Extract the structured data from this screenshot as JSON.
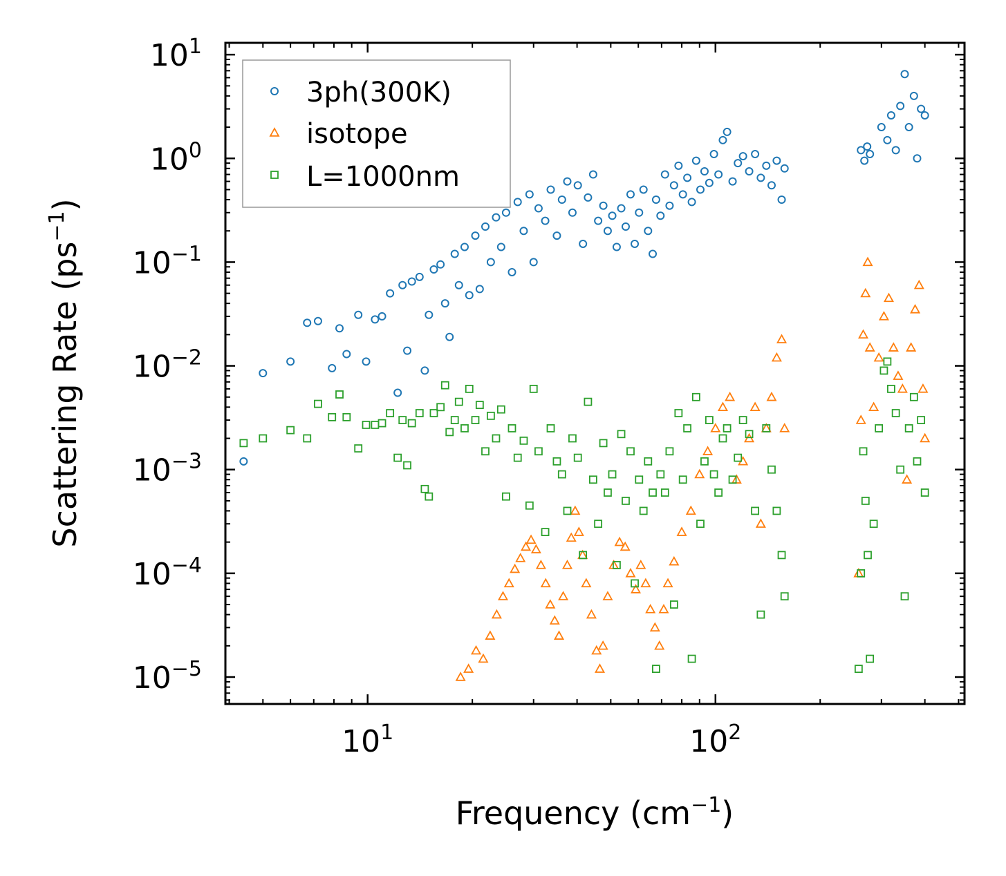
{
  "chart_data": {
    "type": "scatter",
    "xscale": "log",
    "yscale": "log",
    "xlim": [
      3.9,
      520
    ],
    "ylim": [
      5.5e-06,
      13
    ],
    "xlabel": "Frequency (cm",
    "xlabel_exp": "−1",
    "xlabel_end": ")",
    "ylabel": "Scattering Rate (ps",
    "ylabel_exp": "−1",
    "ylabel_end": ")",
    "x_ticks": [
      {
        "value": 10,
        "base": "10",
        "exp": "1"
      },
      {
        "value": 100,
        "base": "10",
        "exp": "2"
      }
    ],
    "y_ticks": [
      {
        "value": 10,
        "base": "10",
        "exp": "1"
      },
      {
        "value": 1,
        "base": "10",
        "exp": "0"
      },
      {
        "value": 0.1,
        "base": "10",
        "exp": "−1"
      },
      {
        "value": 0.01,
        "base": "10",
        "exp": "−2"
      },
      {
        "value": 0.001,
        "base": "10",
        "exp": "−3"
      },
      {
        "value": 0.0001,
        "base": "10",
        "exp": "−4"
      },
      {
        "value": 1e-05,
        "base": "10",
        "exp": "−5"
      }
    ],
    "legend_position": "top-left",
    "series": [
      {
        "name": "3ph(300K)",
        "marker": "circle",
        "color": "#1f77b4",
        "points": [
          [
            4.4,
            0.0012
          ],
          [
            5.0,
            0.0085
          ],
          [
            6.0,
            0.011
          ],
          [
            6.7,
            0.026
          ],
          [
            7.2,
            0.027
          ],
          [
            7.9,
            0.0095
          ],
          [
            8.3,
            0.023
          ],
          [
            8.7,
            0.013
          ],
          [
            9.4,
            0.031
          ],
          [
            9.9,
            0.011
          ],
          [
            10.5,
            0.028
          ],
          [
            11.0,
            0.03
          ],
          [
            11.6,
            0.05
          ],
          [
            12.2,
            0.0055
          ],
          [
            12.6,
            0.06
          ],
          [
            13.0,
            0.014
          ],
          [
            13.4,
            0.065
          ],
          [
            14.1,
            0.072
          ],
          [
            14.6,
            0.009
          ],
          [
            15.0,
            0.031
          ],
          [
            15.5,
            0.085
          ],
          [
            16.2,
            0.095
          ],
          [
            16.7,
            0.04
          ],
          [
            17.2,
            0.019
          ],
          [
            17.8,
            0.12
          ],
          [
            18.3,
            0.06
          ],
          [
            19.0,
            0.14
          ],
          [
            19.6,
            0.048
          ],
          [
            20.4,
            0.18
          ],
          [
            21.0,
            0.055
          ],
          [
            21.8,
            0.22
          ],
          [
            22.6,
            0.1
          ],
          [
            23.4,
            0.27
          ],
          [
            24.2,
            0.14
          ],
          [
            25.0,
            0.3
          ],
          [
            26.0,
            0.08
          ],
          [
            27.0,
            0.38
          ],
          [
            28.1,
            0.2
          ],
          [
            29.2,
            0.45
          ],
          [
            30.0,
            0.1
          ],
          [
            31.0,
            0.33
          ],
          [
            32.4,
            0.25
          ],
          [
            33.6,
            0.5
          ],
          [
            35.0,
            0.18
          ],
          [
            36.2,
            0.4
          ],
          [
            37.5,
            0.6
          ],
          [
            38.8,
            0.3
          ],
          [
            40.2,
            0.55
          ],
          [
            41.6,
            0.15
          ],
          [
            43.0,
            0.42
          ],
          [
            44.5,
            0.7
          ],
          [
            46.0,
            0.25
          ],
          [
            47.6,
            0.35
          ],
          [
            49.0,
            0.2
          ],
          [
            50.5,
            0.28
          ],
          [
            52.0,
            0.14
          ],
          [
            53.6,
            0.33
          ],
          [
            55.2,
            0.22
          ],
          [
            57.0,
            0.45
          ],
          [
            58.6,
            0.15
          ],
          [
            60.3,
            0.3
          ],
          [
            62.1,
            0.5
          ],
          [
            64.0,
            0.2
          ],
          [
            66.0,
            0.12
          ],
          [
            67.5,
            0.4
          ],
          [
            69.5,
            0.28
          ],
          [
            71.6,
            0.7
          ],
          [
            73.8,
            0.35
          ],
          [
            76.0,
            0.55
          ],
          [
            78.3,
            0.85
          ],
          [
            80.6,
            0.45
          ],
          [
            83.0,
            0.65
          ],
          [
            85.5,
            0.38
          ],
          [
            88.0,
            0.95
          ],
          [
            90.5,
            0.5
          ],
          [
            93.0,
            0.75
          ],
          [
            96.0,
            0.58
          ],
          [
            99.0,
            1.1
          ],
          [
            102.0,
            0.7
          ],
          [
            105.0,
            1.5
          ],
          [
            108.0,
            1.8
          ],
          [
            112.0,
            0.6
          ],
          [
            116.0,
            0.9
          ],
          [
            120.0,
            1.05
          ],
          [
            125.0,
            0.75
          ],
          [
            130.0,
            1.1
          ],
          [
            135.0,
            0.65
          ],
          [
            140.0,
            0.85
          ],
          [
            145.0,
            0.55
          ],
          [
            150.0,
            0.95
          ],
          [
            155.0,
            0.4
          ],
          [
            158.0,
            0.8
          ],
          [
            262.0,
            1.2
          ],
          [
            268.0,
            0.95
          ],
          [
            273.0,
            1.3
          ],
          [
            278.0,
            1.1
          ],
          [
            300.0,
            2.0
          ],
          [
            312.0,
            1.5
          ],
          [
            320.0,
            2.6
          ],
          [
            330.0,
            1.2
          ],
          [
            340.0,
            3.2
          ],
          [
            350.0,
            6.5
          ],
          [
            360.0,
            2.0
          ],
          [
            372.0,
            4.0
          ],
          [
            380.0,
            1.0
          ],
          [
            390.0,
            3.0
          ],
          [
            400.0,
            2.6
          ]
        ]
      },
      {
        "name": "isotope",
        "marker": "triangle",
        "color": "#ff7f0e",
        "points": [
          [
            18.5,
            1e-05
          ],
          [
            19.5,
            1.2e-05
          ],
          [
            20.5,
            1.8e-05
          ],
          [
            21.5,
            1.5e-05
          ],
          [
            22.5,
            2.5e-05
          ],
          [
            23.5,
            4e-05
          ],
          [
            24.5,
            6e-05
          ],
          [
            25.5,
            8e-05
          ],
          [
            26.5,
            0.00011
          ],
          [
            27.5,
            0.00014
          ],
          [
            28.5,
            0.00018
          ],
          [
            29.5,
            0.00021
          ],
          [
            30.5,
            0.00017
          ],
          [
            31.5,
            0.00012
          ],
          [
            32.5,
            8e-05
          ],
          [
            33.5,
            5e-05
          ],
          [
            34.5,
            3.5e-05
          ],
          [
            35.5,
            2.5e-05
          ],
          [
            36.5,
            6e-05
          ],
          [
            37.5,
            0.00012
          ],
          [
            38.5,
            0.00022
          ],
          [
            39.5,
            0.0004
          ],
          [
            40.5,
            0.00025
          ],
          [
            41.5,
            0.00015
          ],
          [
            42.5,
            8e-05
          ],
          [
            44.0,
            4e-05
          ],
          [
            45.5,
            1.8e-05
          ],
          [
            46.5,
            1.2e-05
          ],
          [
            47.5,
            2e-05
          ],
          [
            49.0,
            6e-05
          ],
          [
            51.0,
            0.00012
          ],
          [
            53.0,
            0.0002
          ],
          [
            55.0,
            0.00018
          ],
          [
            57.0,
            0.0001
          ],
          [
            59.0,
            7e-05
          ],
          [
            61.0,
            0.00012
          ],
          [
            63.0,
            8e-05
          ],
          [
            65.0,
            4.5e-05
          ],
          [
            67.0,
            3e-05
          ],
          [
            69.0,
            2e-05
          ],
          [
            71.0,
            4.5e-05
          ],
          [
            73.0,
            8e-05
          ],
          [
            76.0,
            0.00013
          ],
          [
            80.0,
            0.00025
          ],
          [
            85.0,
            0.0004
          ],
          [
            90.0,
            0.0009
          ],
          [
            95.0,
            0.0015
          ],
          [
            100.0,
            0.0025
          ],
          [
            105.0,
            0.004
          ],
          [
            110.0,
            0.005
          ],
          [
            115.0,
            0.0008
          ],
          [
            120.0,
            0.0012
          ],
          [
            125.0,
            0.002
          ],
          [
            130.0,
            0.004
          ],
          [
            135.0,
            0.0003
          ],
          [
            140.0,
            0.0025
          ],
          [
            145.0,
            0.005
          ],
          [
            150.0,
            0.012
          ],
          [
            155.0,
            0.018
          ],
          [
            158.0,
            0.0025
          ],
          [
            258.0,
            0.0001
          ],
          [
            262.0,
            0.003
          ],
          [
            266.0,
            0.02
          ],
          [
            270.0,
            0.05
          ],
          [
            274.0,
            0.1
          ],
          [
            278.0,
            0.015
          ],
          [
            285.0,
            0.004
          ],
          [
            295.0,
            0.012
          ],
          [
            305.0,
            0.03
          ],
          [
            315.0,
            0.045
          ],
          [
            325.0,
            0.015
          ],
          [
            335.0,
            0.008
          ],
          [
            345.0,
            0.006
          ],
          [
            355.0,
            0.0008
          ],
          [
            365.0,
            0.015
          ],
          [
            375.0,
            0.035
          ],
          [
            385.0,
            0.06
          ],
          [
            395.0,
            0.006
          ],
          [
            400.0,
            0.002
          ]
        ]
      },
      {
        "name": "L=1000nm",
        "marker": "square",
        "color": "#2ca02c",
        "points": [
          [
            4.4,
            0.0018
          ],
          [
            5.0,
            0.002
          ],
          [
            6.0,
            0.0024
          ],
          [
            6.7,
            0.002
          ],
          [
            7.2,
            0.0043
          ],
          [
            7.9,
            0.0032
          ],
          [
            8.3,
            0.0053
          ],
          [
            8.7,
            0.0032
          ],
          [
            9.4,
            0.0016
          ],
          [
            9.9,
            0.0027
          ],
          [
            10.5,
            0.0027
          ],
          [
            11.0,
            0.0028
          ],
          [
            11.6,
            0.0035
          ],
          [
            12.2,
            0.0013
          ],
          [
            12.6,
            0.003
          ],
          [
            13.0,
            0.0011
          ],
          [
            13.4,
            0.0028
          ],
          [
            14.1,
            0.0035
          ],
          [
            14.6,
            0.00065
          ],
          [
            15.0,
            0.00055
          ],
          [
            15.5,
            0.0035
          ],
          [
            16.2,
            0.004
          ],
          [
            16.7,
            0.0065
          ],
          [
            17.2,
            0.0023
          ],
          [
            17.8,
            0.003
          ],
          [
            18.3,
            0.0045
          ],
          [
            19.0,
            0.0025
          ],
          [
            19.6,
            0.006
          ],
          [
            20.4,
            0.003
          ],
          [
            21.0,
            0.0042
          ],
          [
            21.8,
            0.0015
          ],
          [
            22.6,
            0.0033
          ],
          [
            23.4,
            0.002
          ],
          [
            24.2,
            0.0038
          ],
          [
            25.0,
            0.00055
          ],
          [
            26.0,
            0.0025
          ],
          [
            27.0,
            0.0013
          ],
          [
            28.1,
            0.0019
          ],
          [
            29.2,
            0.00045
          ],
          [
            30.0,
            0.006
          ],
          [
            31.0,
            0.0015
          ],
          [
            32.4,
            0.00025
          ],
          [
            33.6,
            0.0025
          ],
          [
            35.0,
            0.0012
          ],
          [
            36.2,
            0.0009
          ],
          [
            37.5,
            0.0004
          ],
          [
            38.8,
            0.002
          ],
          [
            40.2,
            0.0013
          ],
          [
            41.6,
            0.00015
          ],
          [
            43.0,
            0.0045
          ],
          [
            44.5,
            0.0008
          ],
          [
            46.0,
            0.0003
          ],
          [
            47.6,
            0.0018
          ],
          [
            49.0,
            0.0006
          ],
          [
            50.5,
            0.0009
          ],
          [
            52.0,
            0.00012
          ],
          [
            53.6,
            0.0022
          ],
          [
            55.2,
            0.0005
          ],
          [
            57.0,
            0.0015
          ],
          [
            58.6,
            8e-05
          ],
          [
            60.3,
            0.0008
          ],
          [
            62.1,
            0.0004
          ],
          [
            64.0,
            0.0012
          ],
          [
            66.0,
            0.0006
          ],
          [
            67.5,
            1.2e-05
          ],
          [
            69.5,
            0.0009
          ],
          [
            71.6,
            0.0006
          ],
          [
            73.8,
            0.0015
          ],
          [
            76.0,
            5e-05
          ],
          [
            78.3,
            0.0035
          ],
          [
            80.6,
            0.0008
          ],
          [
            83.0,
            0.0025
          ],
          [
            85.5,
            1.5e-05
          ],
          [
            88.0,
            0.005
          ],
          [
            90.5,
            0.0003
          ],
          [
            93.0,
            0.0012
          ],
          [
            96.0,
            0.003
          ],
          [
            99.0,
            0.0009
          ],
          [
            102.0,
            0.0006
          ],
          [
            105.0,
            0.002
          ],
          [
            108.0,
            0.0025
          ],
          [
            112.0,
            0.0008
          ],
          [
            116.0,
            0.0013
          ],
          [
            120.0,
            0.003
          ],
          [
            125.0,
            0.0022
          ],
          [
            130.0,
            0.0004
          ],
          [
            135.0,
            4e-05
          ],
          [
            140.0,
            0.0025
          ],
          [
            145.0,
            0.001
          ],
          [
            150.0,
            0.0004
          ],
          [
            155.0,
            0.00015
          ],
          [
            158.0,
            6e-05
          ],
          [
            258.0,
            1.2e-05
          ],
          [
            262.0,
            0.0001
          ],
          [
            266.0,
            0.0015
          ],
          [
            270.0,
            0.0005
          ],
          [
            274.0,
            0.00015
          ],
          [
            278.0,
            1.5e-05
          ],
          [
            285.0,
            0.0003
          ],
          [
            295.0,
            0.0025
          ],
          [
            305.0,
            0.009
          ],
          [
            312.0,
            0.011
          ],
          [
            320.0,
            0.006
          ],
          [
            330.0,
            0.0035
          ],
          [
            340.0,
            0.001
          ],
          [
            350.0,
            6e-05
          ],
          [
            360.0,
            0.0025
          ],
          [
            372.0,
            0.005
          ],
          [
            380.0,
            0.0012
          ],
          [
            390.0,
            0.003
          ],
          [
            400.0,
            0.0006
          ]
        ]
      }
    ]
  }
}
